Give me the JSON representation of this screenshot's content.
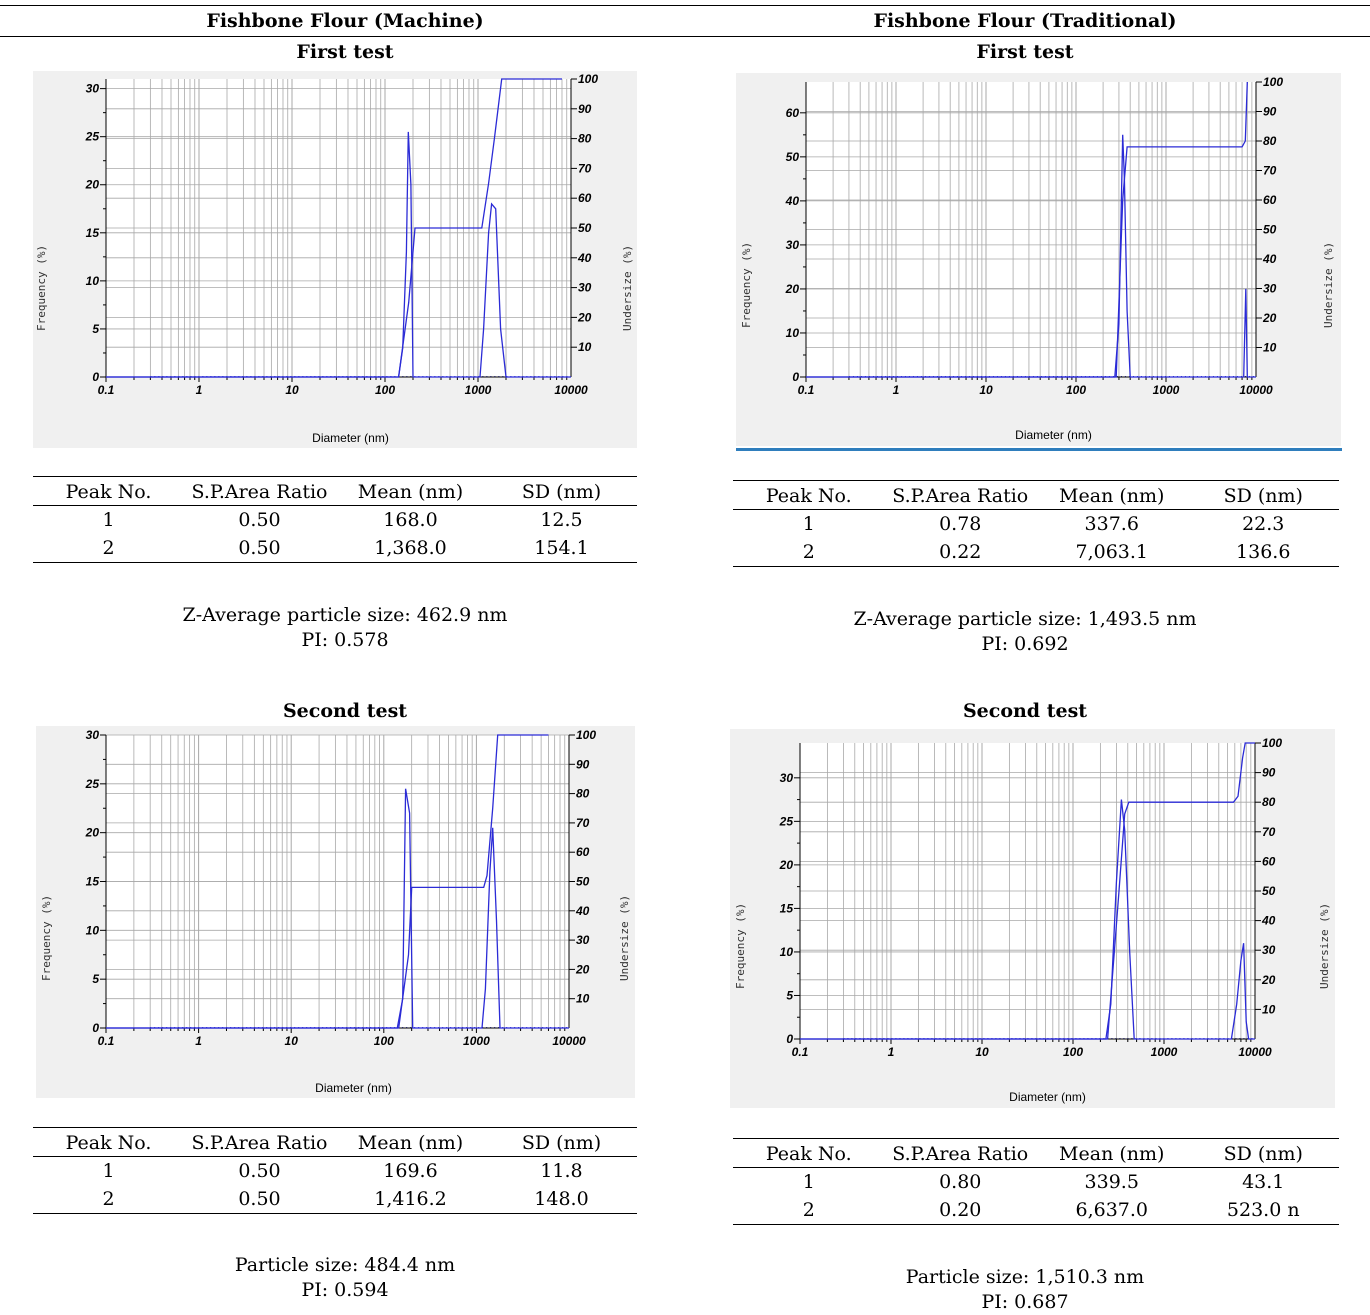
{
  "columns": [
    "Fishbone Flour (Machine)",
    "Fishbone Flour (Traditional)"
  ],
  "table_headers": [
    "Peak No.",
    "S.P.Area Ratio",
    "Mean (nm)",
    "SD (nm)"
  ],
  "panels": [
    {
      "test": "First test",
      "table": [
        [
          "1",
          "0.50",
          "168.0",
          "12.5"
        ],
        [
          "2",
          "0.50",
          "1,368.0",
          "154.1"
        ]
      ],
      "summary": [
        "Z-Average particle size: 462.9 nm",
        "PI: 0.578"
      ]
    },
    {
      "test": "First test",
      "table": [
        [
          "1",
          "0.78",
          "337.6",
          "22.3"
        ],
        [
          "2",
          "0.22",
          "7,063.1",
          "136.6"
        ]
      ],
      "summary": [
        "Z-Average particle size: 1,493.5 nm",
        "PI: 0.692"
      ]
    },
    {
      "test": "Second test",
      "table": [
        [
          "1",
          "0.50",
          "169.6",
          "11.8"
        ],
        [
          "2",
          "0.50",
          "1,416.2",
          "148.0"
        ]
      ],
      "summary": [
        "Particle size: 484.4 nm",
        "PI: 0.594"
      ]
    },
    {
      "test": "Second test",
      "table": [
        [
          "1",
          "0.80",
          "339.5",
          "43.1"
        ],
        [
          "2",
          "0.20",
          "6,637.0",
          "523.0 n"
        ]
      ],
      "summary": [
        "Particle size: 1,510.3 nm",
        "PI: 0.687"
      ]
    }
  ],
  "colors": {
    "line": "#2b2bd6",
    "grid": "#a8a8a8",
    "panel_bg": "#f0f0f0",
    "accent_rule": "#2f7ebd"
  },
  "chart_data": [
    {
      "type": "line",
      "xlabel": "Diameter (nm)",
      "ylabel": "Frequency (%)",
      "y2label": "Undersize (%)",
      "xscale": "log",
      "xlim": [
        0.1,
        10000
      ],
      "ylim": [
        0,
        31
      ],
      "y2lim": [
        0,
        100
      ],
      "xticks": [
        "0.1",
        "1",
        "10",
        "100",
        "1000",
        "10000"
      ],
      "yticks": [
        "0",
        "5",
        "10",
        "15",
        "20",
        "25",
        "30"
      ],
      "y2ticks": [
        "10",
        "20",
        "30",
        "40",
        "50",
        "60",
        "70",
        "80",
        "90",
        "100"
      ],
      "grid": true,
      "frequency": [
        [
          0.1,
          0
        ],
        [
          0.3,
          0
        ],
        [
          140,
          0
        ],
        [
          155,
          3
        ],
        [
          170,
          13
        ],
        [
          178,
          25.5
        ],
        [
          190,
          20
        ],
        [
          200,
          0
        ],
        [
          1050,
          0
        ],
        [
          1150,
          5
        ],
        [
          1300,
          15
        ],
        [
          1400,
          18
        ],
        [
          1550,
          17.5
        ],
        [
          1750,
          5
        ],
        [
          2000,
          0
        ],
        [
          10000,
          0
        ]
      ],
      "undersize": [
        [
          0.1,
          0
        ],
        [
          140,
          0
        ],
        [
          180,
          25
        ],
        [
          210,
          50
        ],
        [
          1100,
          50
        ],
        [
          1300,
          65
        ],
        [
          1500,
          80
        ],
        [
          1800,
          100
        ],
        [
          8000,
          100
        ]
      ]
    },
    {
      "type": "line",
      "xlabel": "Diameter (nm)",
      "ylabel": "Frequency (%)",
      "y2label": "Undersize (%)",
      "xscale": "log",
      "xlim": [
        0.1,
        10000
      ],
      "ylim": [
        0,
        67
      ],
      "y2lim": [
        0,
        100
      ],
      "xticks": [
        "0.1",
        "1",
        "10",
        "100",
        "1000",
        "10000"
      ],
      "yticks": [
        "0",
        "10",
        "20",
        "30",
        "40",
        "50",
        "60"
      ],
      "y2ticks": [
        "10",
        "20",
        "30",
        "40",
        "50",
        "60",
        "70",
        "80",
        "90",
        "100"
      ],
      "grid": true,
      "frequency": [
        [
          0.1,
          0
        ],
        [
          0.3,
          0
        ],
        [
          270,
          0
        ],
        [
          300,
          12
        ],
        [
          330,
          55
        ],
        [
          345,
          45
        ],
        [
          370,
          15
        ],
        [
          400,
          0
        ],
        [
          7300,
          0
        ],
        [
          7700,
          20
        ],
        [
          8000,
          0
        ],
        [
          10000,
          0
        ]
      ],
      "undersize": [
        [
          0.1,
          0
        ],
        [
          280,
          0
        ],
        [
          330,
          60
        ],
        [
          370,
          78
        ],
        [
          7000,
          78
        ],
        [
          7600,
          80
        ],
        [
          8000,
          100
        ]
      ]
    },
    {
      "type": "line",
      "xlabel": "Diameter (nm)",
      "ylabel": "Frequency (%)",
      "y2label": "Undersize (%)",
      "xscale": "log",
      "xlim": [
        0.1,
        10000
      ],
      "ylim": [
        0,
        30
      ],
      "y2lim": [
        0,
        100
      ],
      "xticks": [
        "0.1",
        "1",
        "10",
        "100",
        "1000",
        "10000"
      ],
      "yticks": [
        "0",
        "5",
        "10",
        "15",
        "20",
        "25",
        "30"
      ],
      "y2ticks": [
        "10",
        "20",
        "30",
        "40",
        "50",
        "60",
        "70",
        "80",
        "90",
        "100"
      ],
      "grid": true,
      "frequency": [
        [
          0.1,
          0
        ],
        [
          0.3,
          0
        ],
        [
          140,
          0
        ],
        [
          160,
          3
        ],
        [
          172,
          24.5
        ],
        [
          190,
          22
        ],
        [
          205,
          0
        ],
        [
          1150,
          0
        ],
        [
          1250,
          4
        ],
        [
          1400,
          16
        ],
        [
          1500,
          20.5
        ],
        [
          1650,
          11
        ],
        [
          1800,
          0
        ],
        [
          10000,
          0
        ]
      ],
      "undersize": [
        [
          0.1,
          0
        ],
        [
          145,
          0
        ],
        [
          185,
          25
        ],
        [
          200,
          48
        ],
        [
          1200,
          48
        ],
        [
          1300,
          52
        ],
        [
          1500,
          75
        ],
        [
          1700,
          100
        ],
        [
          6000,
          100
        ]
      ]
    },
    {
      "type": "line",
      "xlabel": "Diameter (nm)",
      "ylabel": "Frequency (%)",
      "y2label": "Undersize (%)",
      "xscale": "log",
      "xlim": [
        0.1,
        10000
      ],
      "ylim": [
        0,
        34
      ],
      "y2lim": [
        0,
        100
      ],
      "xticks": [
        "0.1",
        "1",
        "10",
        "100",
        "1000",
        "10000"
      ],
      "yticks": [
        "0",
        "5",
        "10",
        "15",
        "20",
        "25",
        "30"
      ],
      "y2ticks": [
        "10",
        "20",
        "30",
        "40",
        "50",
        "60",
        "70",
        "80",
        "90",
        "100"
      ],
      "grid": true,
      "frequency": [
        [
          0.1,
          0
        ],
        [
          0.3,
          0
        ],
        [
          230,
          0
        ],
        [
          260,
          4
        ],
        [
          300,
          18
        ],
        [
          340,
          27.5
        ],
        [
          370,
          24
        ],
        [
          420,
          10
        ],
        [
          470,
          0
        ],
        [
          5500,
          0
        ],
        [
          6300,
          4
        ],
        [
          7000,
          9
        ],
        [
          7500,
          11
        ],
        [
          8000,
          2
        ],
        [
          8500,
          0
        ],
        [
          10000,
          0
        ]
      ],
      "undersize": [
        [
          0.1,
          0
        ],
        [
          240,
          0
        ],
        [
          320,
          50
        ],
        [
          370,
          76
        ],
        [
          410,
          80
        ],
        [
          5800,
          80
        ],
        [
          6500,
          82
        ],
        [
          7300,
          95
        ],
        [
          7800,
          100
        ],
        [
          10000,
          100
        ]
      ]
    }
  ]
}
